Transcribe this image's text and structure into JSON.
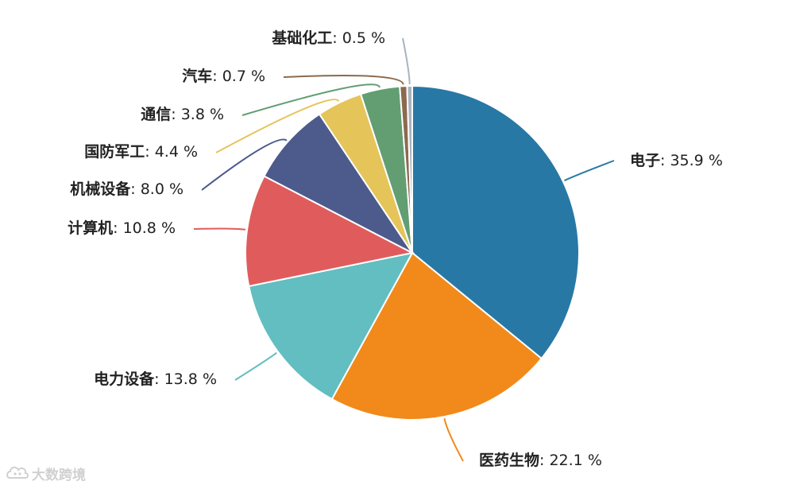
{
  "chart_data": {
    "type": "pie",
    "value_suffix": " %",
    "slices": [
      {
        "name": "电子",
        "value": 35.9,
        "color": "#2878a5"
      },
      {
        "name": "医药生物",
        "value": 22.1,
        "color": "#f18a1a"
      },
      {
        "name": "电力设备",
        "value": 13.8,
        "color": "#62bec0"
      },
      {
        "name": "计算机",
        "value": 10.8,
        "color": "#e05c5c"
      },
      {
        "name": "机械设备",
        "value": 8.0,
        "color": "#4c5a8c"
      },
      {
        "name": "国防军工",
        "value": 4.4,
        "color": "#e5c45a"
      },
      {
        "name": "通信",
        "value": 3.8,
        "color": "#629e72"
      },
      {
        "name": "汽车",
        "value": 0.7,
        "color": "#8b6a4e"
      },
      {
        "name": "基础化工",
        "value": 0.5,
        "color": "#a9b3c0"
      }
    ]
  },
  "watermark": {
    "text": "大数跨境",
    "logo_icon": "cloud-logo-icon"
  }
}
